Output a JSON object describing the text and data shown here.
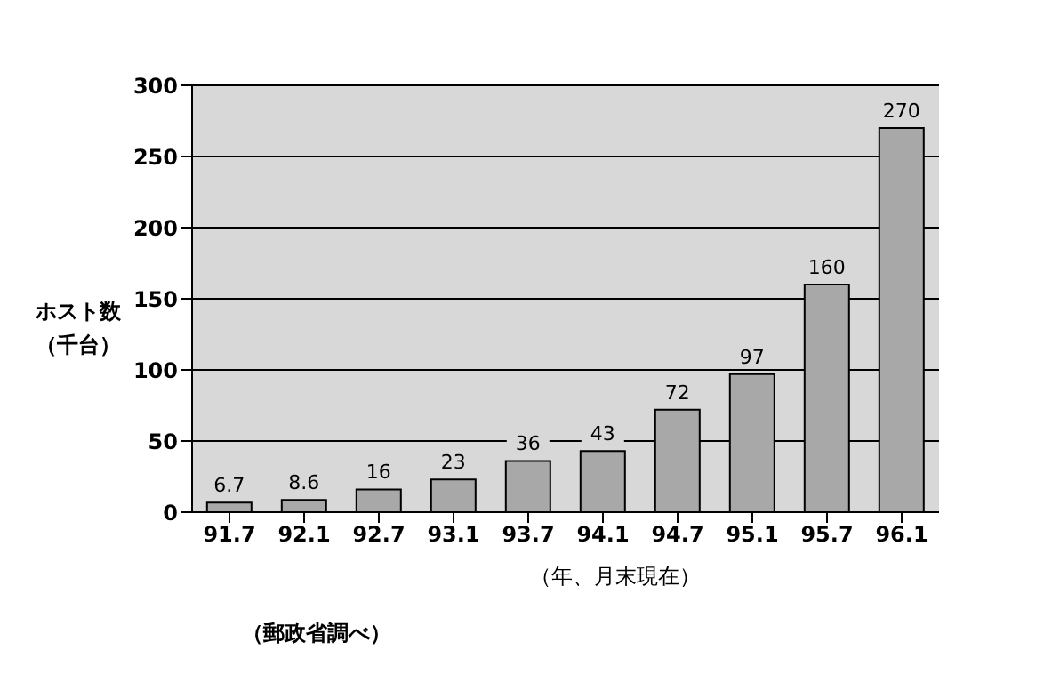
{
  "chart_data": {
    "type": "bar",
    "ylabel": "ホスト数（千台）",
    "xlabel": "（年、月末現在）",
    "annotations": [
      "（郵政省調べ）"
    ],
    "categories": [
      "91.7",
      "92.1",
      "92.7",
      "93.1",
      "93.7",
      "94.1",
      "94.7",
      "95.1",
      "95.7",
      "96.1"
    ],
    "values": [
      6.7,
      8.6,
      16,
      23,
      36,
      43,
      72,
      97,
      160,
      270
    ],
    "color": "#a8a8a8",
    "ylim": [
      0,
      300
    ],
    "yticks": [
      0,
      50,
      100,
      150,
      200,
      250,
      300
    ],
    "grid": "y",
    "data_labels": true
  }
}
